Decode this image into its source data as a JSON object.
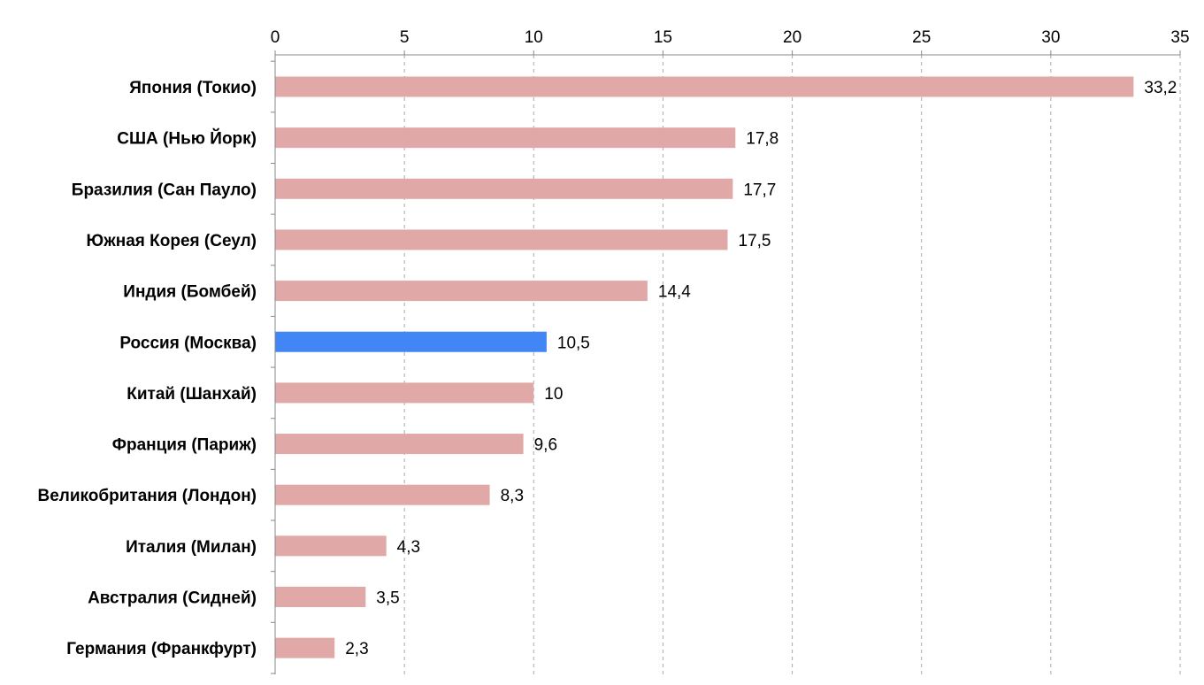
{
  "chart_data": {
    "type": "bar",
    "orientation": "horizontal",
    "title": "",
    "xlabel": "",
    "ylabel": "",
    "xlim": [
      0,
      35
    ],
    "x_ticks": [
      0,
      5,
      10,
      15,
      20,
      25,
      30,
      35
    ],
    "x_axis_position": "top",
    "grid": true,
    "grid_style": "dashed",
    "categories": [
      "Япония (Токио)",
      "США (Нью Йорк)",
      "Бразилия (Сан Пауло)",
      "Южная Корея (Сеул)",
      "Индия (Бомбей)",
      "Россия (Москва)",
      "Китай (Шанхай)",
      "Франция (Париж)",
      "Великобритания (Лондон)",
      "Италия (Милан)",
      "Австралия (Сидней)",
      "Германия (Франкфурт)"
    ],
    "values": [
      33.2,
      17.8,
      17.7,
      17.5,
      14.4,
      10.5,
      10,
      9.6,
      8.3,
      4.3,
      3.5,
      2.3
    ],
    "value_labels": [
      "33,2",
      "17,8",
      "17,7",
      "17,5",
      "14,4",
      "10,5",
      "10",
      "9,6",
      "8,3",
      "4,3",
      "3,5",
      "2,3"
    ],
    "highlight_index": 5,
    "colors": {
      "bar": "#e0a8a6",
      "highlight": "#4285f4",
      "grid": "#aaaaaa",
      "axis": "#888888",
      "text": "#000000"
    }
  }
}
